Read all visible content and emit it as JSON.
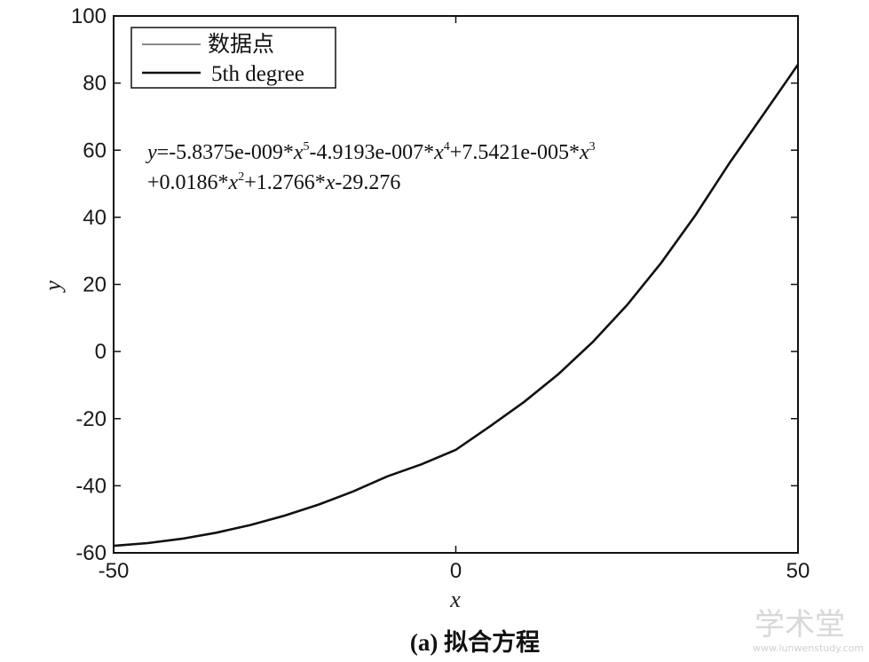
{
  "chart_data": {
    "type": "line",
    "xlabel": "x",
    "ylabel": "y",
    "xlim": [
      -50,
      50
    ],
    "ylim": [
      -60,
      100
    ],
    "xticks": [
      "-50",
      "0",
      "50"
    ],
    "yticks": [
      "-60",
      "-40",
      "-20",
      "0",
      "20",
      "40",
      "60",
      "80",
      "100"
    ],
    "grid": false,
    "legend_position": "top-left",
    "legend": [
      "数据点",
      "5th degree"
    ],
    "series": [
      {
        "name": "5th degree",
        "x": [
          -50,
          -45,
          -40,
          -35,
          -30,
          -25,
          -20,
          -15,
          -10,
          -5,
          0,
          5,
          10,
          15,
          20,
          25,
          30,
          35,
          40,
          45,
          50
        ],
        "y": [
          -57.9,
          -57.1,
          -55.8,
          -54.0,
          -51.7,
          -48.9,
          -45.6,
          -41.7,
          -37.2,
          -33.6,
          -29.3,
          -22.3,
          -15.0,
          -6.7,
          2.8,
          13.8,
          26.4,
          40.6,
          56.2,
          70.8,
          85.5
        ]
      }
    ],
    "equation": {
      "line1": [
        "y",
        "=-5.8375e-009*",
        "x",
        "5",
        "-4.9193e-007*",
        "x",
        "4",
        "+7.5421e-005*",
        "x",
        "3"
      ],
      "line2": [
        "+0.0186*",
        "x",
        "2",
        "+1.2766*",
        "x",
        "-29.276"
      ]
    }
  },
  "caption": "(a)  拟合方程",
  "watermark": {
    "main": "学术堂",
    "sub": "www.lunwenstudy.com"
  }
}
